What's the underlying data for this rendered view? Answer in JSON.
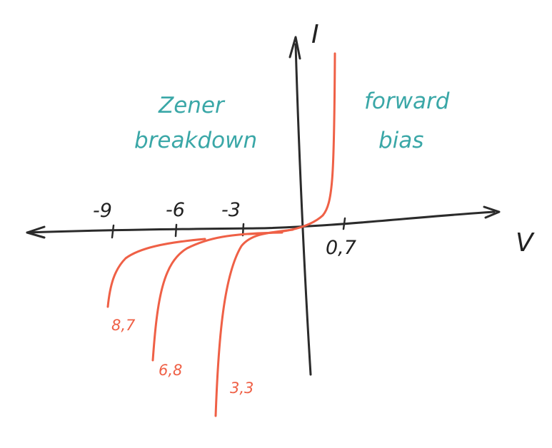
{
  "colors": {
    "ink": "#2b2b2b",
    "curve": "#ef6046",
    "region_text": "#3aa7a7",
    "background": "#ffffff"
  },
  "axes": {
    "x_label": "V",
    "y_label": "I",
    "tick_labels": [
      "-9",
      "-6",
      "-3",
      "0,7"
    ]
  },
  "regions": {
    "breakdown": [
      "Zener",
      "breakdown"
    ],
    "forward": [
      "forward",
      "bias"
    ]
  },
  "curves": {
    "labels": [
      "8,7",
      "6,8",
      "3,3"
    ]
  }
}
